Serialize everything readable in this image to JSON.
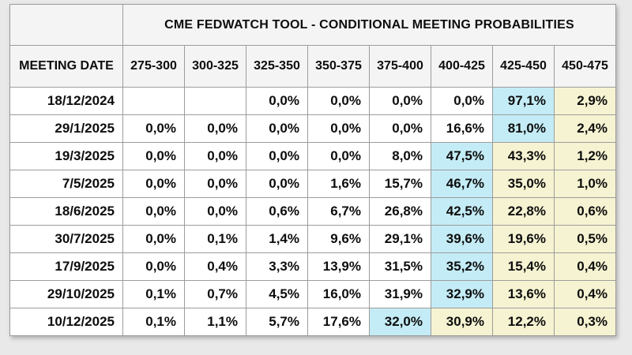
{
  "title": "CME FEDWATCH TOOL - CONDITIONAL MEETING PROBABILITIES",
  "table": {
    "date_header": "MEETING DATE",
    "rate_headers": [
      "275-300",
      "300-325",
      "325-350",
      "350-375",
      "375-400",
      "400-425",
      "425-450",
      "450-475"
    ],
    "rows": [
      {
        "date": "18/12/2024",
        "values": [
          "",
          "",
          "0,0%",
          "0,0%",
          "0,0%",
          "0,0%",
          "97,1%",
          "2,9%"
        ],
        "highlights": [
          "",
          "",
          "",
          "",
          "",
          "",
          "blue",
          "yellow"
        ]
      },
      {
        "date": "29/1/2025",
        "values": [
          "0,0%",
          "0,0%",
          "0,0%",
          "0,0%",
          "0,0%",
          "16,6%",
          "81,0%",
          "2,4%"
        ],
        "highlights": [
          "",
          "",
          "",
          "",
          "",
          "",
          "blue",
          "yellow"
        ]
      },
      {
        "date": "19/3/2025",
        "values": [
          "0,0%",
          "0,0%",
          "0,0%",
          "0,0%",
          "8,0%",
          "47,5%",
          "43,3%",
          "1,2%"
        ],
        "highlights": [
          "",
          "",
          "",
          "",
          "",
          "blue",
          "yellow",
          "yellow"
        ]
      },
      {
        "date": "7/5/2025",
        "values": [
          "0,0%",
          "0,0%",
          "0,0%",
          "1,6%",
          "15,7%",
          "46,7%",
          "35,0%",
          "1,0%"
        ],
        "highlights": [
          "",
          "",
          "",
          "",
          "",
          "blue",
          "yellow",
          "yellow"
        ]
      },
      {
        "date": "18/6/2025",
        "values": [
          "0,0%",
          "0,0%",
          "0,6%",
          "6,7%",
          "26,8%",
          "42,5%",
          "22,8%",
          "0,6%"
        ],
        "highlights": [
          "",
          "",
          "",
          "",
          "",
          "blue",
          "yellow",
          "yellow"
        ]
      },
      {
        "date": "30/7/2025",
        "values": [
          "0,0%",
          "0,1%",
          "1,4%",
          "9,6%",
          "29,1%",
          "39,6%",
          "19,6%",
          "0,5%"
        ],
        "highlights": [
          "",
          "",
          "",
          "",
          "",
          "blue",
          "yellow",
          "yellow"
        ]
      },
      {
        "date": "17/9/2025",
        "values": [
          "0,0%",
          "0,4%",
          "3,3%",
          "13,9%",
          "31,5%",
          "35,2%",
          "15,4%",
          "0,4%"
        ],
        "highlights": [
          "",
          "",
          "",
          "",
          "",
          "blue",
          "yellow",
          "yellow"
        ]
      },
      {
        "date": "29/10/2025",
        "values": [
          "0,1%",
          "0,7%",
          "4,5%",
          "16,0%",
          "31,9%",
          "32,9%",
          "13,6%",
          "0,4%"
        ],
        "highlights": [
          "",
          "",
          "",
          "",
          "",
          "blue",
          "yellow",
          "yellow"
        ]
      },
      {
        "date": "10/12/2025",
        "values": [
          "0,1%",
          "1,1%",
          "5,7%",
          "17,6%",
          "32,0%",
          "30,9%",
          "12,2%",
          "0,3%"
        ],
        "highlights": [
          "",
          "",
          "",
          "",
          "blue",
          "yellow",
          "yellow",
          "yellow"
        ]
      }
    ]
  },
  "colors": {
    "highlight_blue": "#C4ECF6",
    "highlight_yellow": "#F6F3D2",
    "header_background": "#F4F4F4",
    "border": "#9C9C9C"
  }
}
